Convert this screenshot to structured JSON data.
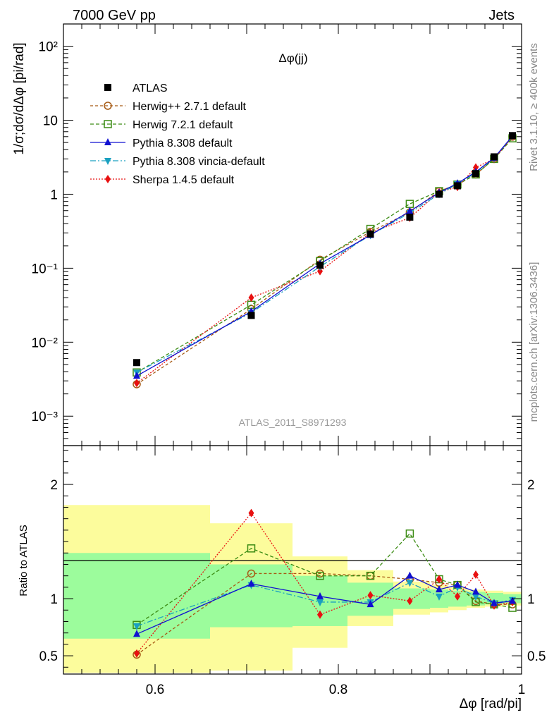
{
  "header": {
    "left": "7000 GeV pp",
    "right": "Jets"
  },
  "side_labels": {
    "rivet": "Rivet 3.1.10, ≥ 400k events",
    "mcplots": "mcplots.cern.ch [arXiv:1306.3436]"
  },
  "colors": {
    "ATLAS": "#000000",
    "herwigpp": "#a65a14",
    "herwig7": "#3c8c14",
    "pythia": "#1010d0",
    "vincia": "#1aa0c0",
    "sherpa": "#e81010",
    "band_inner": "#9cfc9c",
    "band_outer": "#fcfc9c"
  },
  "chart_data": [
    {
      "type": "scatter",
      "name": "main",
      "title": "Δφ(jj)",
      "ylabel": "1/σ;dσ/dΔφ [pi/rad]",
      "yscale": "log",
      "ylim": [
        0.0004,
        200
      ],
      "xlim": [
        0.5,
        1.0
      ],
      "analysis_label": "ATLAS_2011_S8971293",
      "ytick_labels": [
        "10⁻³",
        "10⁻²",
        "10⁻¹",
        "1",
        "10",
        "10²"
      ],
      "legend": [
        {
          "key": "ATLAS",
          "label": "ATLAS"
        },
        {
          "key": "herwigpp",
          "label": "Herwig++ 2.7.1 default"
        },
        {
          "key": "herwig7",
          "label": "Herwig 7.2.1 default"
        },
        {
          "key": "pythia",
          "label": "Pythia 8.308 default"
        },
        {
          "key": "vincia",
          "label": "Pythia 8.308 vincia-default"
        },
        {
          "key": "sherpa",
          "label": "Sherpa 1.4.5 default"
        }
      ],
      "x": [
        0.58,
        0.705,
        0.78,
        0.835,
        0.878,
        0.91,
        0.93,
        0.95,
        0.97,
        0.99
      ],
      "bin_edges": [
        0.5,
        0.66,
        0.75,
        0.81,
        0.86,
        0.9,
        0.92,
        0.94,
        0.96,
        0.98,
        1.0
      ],
      "series": [
        {
          "key": "ATLAS",
          "values": [
            0.0053,
            0.023,
            0.11,
            0.29,
            0.49,
            1.0,
            1.3,
            1.9,
            3.2,
            6.2
          ]
        },
        {
          "key": "herwigpp",
          "values": [
            0.0027,
            0.028,
            0.13,
            0.31,
            0.57,
            1.1,
            1.35,
            1.85,
            3.0,
            6.0
          ]
        },
        {
          "key": "herwig7",
          "values": [
            0.0039,
            0.032,
            0.125,
            0.34,
            0.74,
            1.1,
            1.35,
            1.85,
            3.0,
            5.7
          ]
        },
        {
          "key": "pythia",
          "values": [
            0.0035,
            0.026,
            0.115,
            0.28,
            0.59,
            1.05,
            1.4,
            2.0,
            3.1,
            6.1
          ]
        },
        {
          "key": "vincia",
          "values": [
            0.0039,
            0.025,
            0.105,
            0.28,
            0.56,
            1.0,
            1.38,
            1.95,
            3.05,
            6.1
          ]
        },
        {
          "key": "sherpa",
          "values": [
            0.0028,
            0.04,
            0.091,
            0.3,
            0.48,
            1.07,
            1.25,
            2.3,
            3.0,
            6.0
          ]
        }
      ]
    },
    {
      "type": "scatter",
      "name": "ratio",
      "ylabel": "Ratio to ATLAS",
      "ylim": [
        0.34,
        2.34
      ],
      "xlim": [
        0.5,
        1.0
      ],
      "xlabel": "Δφ [rad/pi]",
      "xtick_labels": [
        "0.6",
        "0.8",
        "1"
      ],
      "ytick_labels": [
        "0.5",
        "1",
        "2"
      ],
      "band_inner": [
        [
          0.65,
          1.4
        ],
        [
          0.75,
          1.3
        ],
        [
          0.76,
          1.2
        ],
        [
          0.85,
          1.14
        ],
        [
          0.91,
          1.09
        ],
        [
          0.92,
          1.08
        ],
        [
          0.93,
          1.07
        ],
        [
          0.94,
          1.06
        ],
        [
          0.95,
          1.05
        ],
        [
          0.96,
          1.04
        ]
      ],
      "band_outer": [
        [
          0.35,
          1.82
        ],
        [
          0.37,
          1.66
        ],
        [
          0.57,
          1.37
        ],
        [
          0.76,
          1.25
        ],
        [
          0.86,
          1.15
        ],
        [
          0.88,
          1.12
        ],
        [
          0.9,
          1.1
        ],
        [
          0.92,
          1.08
        ],
        [
          0.93,
          1.07
        ],
        [
          0.94,
          1.06
        ]
      ],
      "series": [
        {
          "key": "herwigpp",
          "values": [
            0.51,
            1.22,
            1.22,
            1.2,
            1.17,
            1.14,
            1.12,
            0.98,
            0.95,
            0.95
          ]
        },
        {
          "key": "herwig7",
          "values": [
            0.77,
            1.44,
            1.2,
            1.2,
            1.57,
            1.17,
            1.12,
            0.97,
            0.95,
            0.92
          ]
        },
        {
          "key": "pythia",
          "values": [
            0.69,
            1.13,
            1.02,
            0.95,
            1.2,
            1.08,
            1.12,
            1.06,
            0.96,
            0.98
          ]
        },
        {
          "key": "vincia",
          "values": [
            0.76,
            1.12,
            0.97,
            0.97,
            1.14,
            1.02,
            1.1,
            1.02,
            0.96,
            0.99
          ]
        },
        {
          "key": "sherpa",
          "values": [
            0.52,
            1.75,
            0.86,
            1.03,
            0.98,
            1.17,
            1.02,
            1.21,
            0.94,
            0.97
          ]
        }
      ]
    }
  ]
}
